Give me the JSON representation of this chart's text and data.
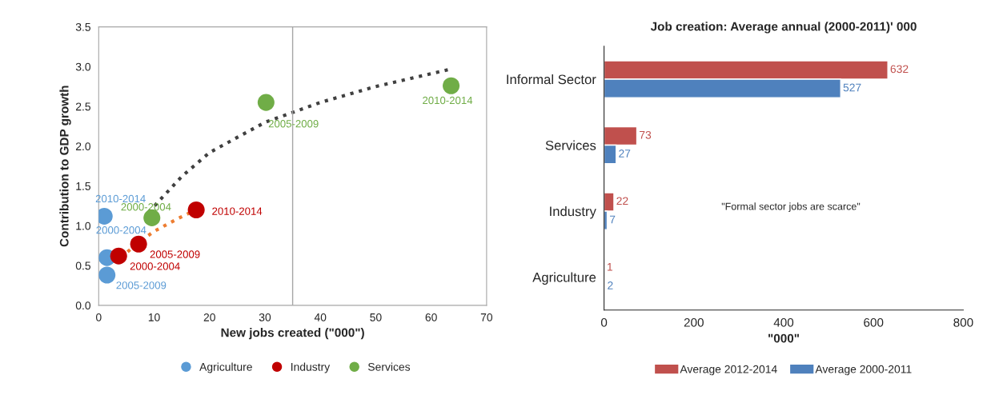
{
  "chart_data": [
    {
      "type": "scatter",
      "xlabel": "New jobs created (\"000\")",
      "ylabel": "Contribution to GDP growth",
      "xlim": [
        0,
        70
      ],
      "xticks": [
        0,
        10,
        20,
        30,
        40,
        50,
        60,
        70
      ],
      "ylim": [
        0,
        3.5
      ],
      "yticks": [
        {
          "value": 0,
          "label": "0.0"
        },
        0.5,
        {
          "value": 1,
          "label": "1.0"
        },
        1.5,
        {
          "value": 2,
          "label": "2.0"
        },
        2.5,
        {
          "value": 3,
          "label": "3.0"
        },
        3.5
      ],
      "marker": "circle",
      "legend": "bottom",
      "grid": false,
      "ref_lines": [
        {
          "axis": "x",
          "value": 35,
          "color": "#a6a6a6"
        }
      ],
      "series": [
        {
          "name": "Agriculture",
          "color": "#5b9bd5",
          "x": [
            1.0,
            1.5,
            1.5
          ],
          "values": [
            1.12,
            0.6,
            0.38
          ],
          "value_labels": [
            "2010-2014",
            "2000-2004",
            "2005-2009"
          ]
        },
        {
          "name": "Industry",
          "color": "#c00000",
          "x": [
            3.6,
            7.2,
            17.6
          ],
          "values": [
            0.62,
            0.77,
            1.2
          ],
          "value_labels": [
            "2000-2004",
            "2005-2009",
            "2010-2014"
          ]
        },
        {
          "name": "Services",
          "color": "#70ad47",
          "x": [
            9.6,
            30.2,
            63.6
          ],
          "values": [
            1.1,
            2.55,
            2.76
          ],
          "value_labels": [
            "2000-2004",
            "2005-2009",
            "2010-2014"
          ]
        },
        {
          "type": "line",
          "color": "#404040",
          "line_style": "dotted",
          "marker": "none",
          "x": [
            9,
            15,
            20,
            30,
            40,
            50,
            63
          ],
          "values": [
            1.17,
            1.62,
            1.92,
            2.3,
            2.55,
            2.75,
            2.96
          ]
        },
        {
          "type": "line",
          "color": "#ed7d31",
          "line_style": "dotted",
          "marker": "none",
          "x": [
            4,
            7,
            10,
            14,
            17.5
          ],
          "values": [
            0.6,
            0.78,
            0.93,
            1.08,
            1.2
          ]
        }
      ]
    },
    {
      "type": "bar",
      "orientation": "horizontal",
      "title": "Job creation: Average annual (2000-2011)' 000",
      "xlabel": "\"000\"",
      "categories": [
        "Informal Sector",
        "Services",
        "Industry",
        "Agriculture"
      ],
      "xlim": [
        0,
        800
      ],
      "xticks": [
        0,
        200,
        400,
        600,
        800
      ],
      "legend": "bottom",
      "grid": false,
      "data_labels": true,
      "annotations": [
        "\"Formal sector jobs are scarce\""
      ],
      "series": [
        {
          "name": "Average 2012-2014",
          "color": "#c0504d",
          "values": [
            632,
            73,
            22,
            1
          ]
        },
        {
          "name": "Average 2000-2011",
          "color": "#4f81bd",
          "values": [
            527,
            27,
            7,
            2
          ]
        }
      ]
    }
  ]
}
